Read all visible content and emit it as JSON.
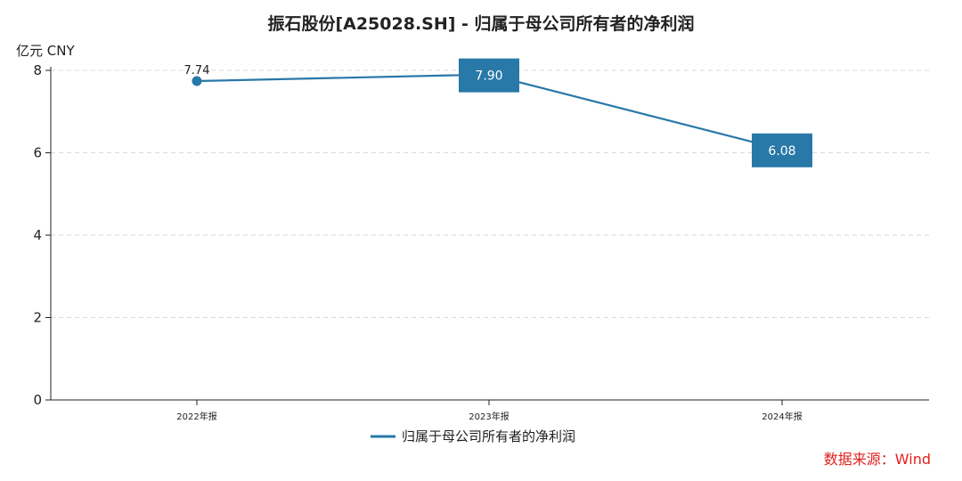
{
  "chart_data": {
    "type": "line",
    "title": "振石股份[A25028.SH] - 归属于母公司所有者的净利润",
    "unit_label": "亿元  CNY",
    "categories": [
      "2022年报",
      "2023年报",
      "2024年报"
    ],
    "series": [
      {
        "name": "归属于母公司所有者的净利润",
        "values": [
          7.74,
          7.9,
          6.08
        ],
        "data_labels": [
          "7.74",
          "7.90",
          "6.08"
        ]
      }
    ],
    "ylim": [
      0,
      8
    ],
    "yticks": [
      "0",
      "2",
      "4",
      "6",
      "8"
    ],
    "grid": true,
    "legend_position": "bottom",
    "line_color": "#2878a8",
    "source": "数据来源：Wind"
  }
}
